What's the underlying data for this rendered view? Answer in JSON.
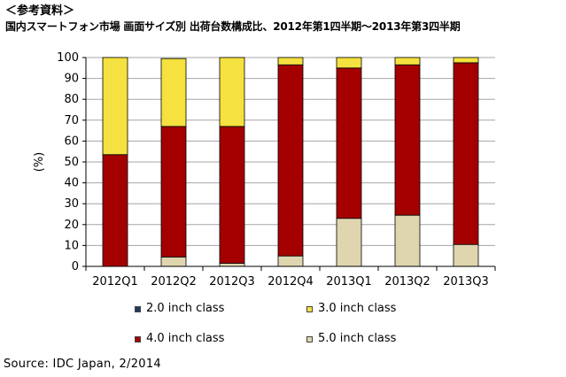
{
  "heading": "＜参考資料＞",
  "chart_data": {
    "type": "bar",
    "stacked": true,
    "title": "国内スマートフォン市場 画面サイズ別 出荷台数構成比、2012年第1四半期～2013年第3四半期",
    "ylabel": "(%)",
    "ylim": [
      0,
      100
    ],
    "yticks": [
      0,
      10,
      20,
      30,
      40,
      50,
      60,
      70,
      80,
      90,
      100
    ],
    "grid": true,
    "legend_position": "bottom",
    "categories": [
      "2012Q1",
      "2012Q2",
      "2012Q3",
      "2012Q4",
      "2013Q1",
      "2013Q2",
      "2013Q3"
    ],
    "series": [
      {
        "name": "2.0 inch class",
        "color": "#1f3864",
        "values": [
          0,
          0,
          0,
          0,
          0,
          0,
          0
        ]
      },
      {
        "name": "3.0 inch class",
        "color": "#f5e13f",
        "values": [
          46.5,
          32.5,
          33,
          3.5,
          5,
          3.5,
          2.5
        ]
      },
      {
        "name": "4.0 inch class",
        "color": "#a50000",
        "values": [
          53.5,
          62.5,
          65.5,
          91.5,
          72,
          72,
          87
        ]
      },
      {
        "name": "5.0 inch class",
        "color": "#dfd6b0",
        "values": [
          0,
          4.5,
          1.5,
          5,
          23,
          24.5,
          10.5
        ]
      }
    ]
  },
  "source": "Source: IDC Japan, 2/2014"
}
